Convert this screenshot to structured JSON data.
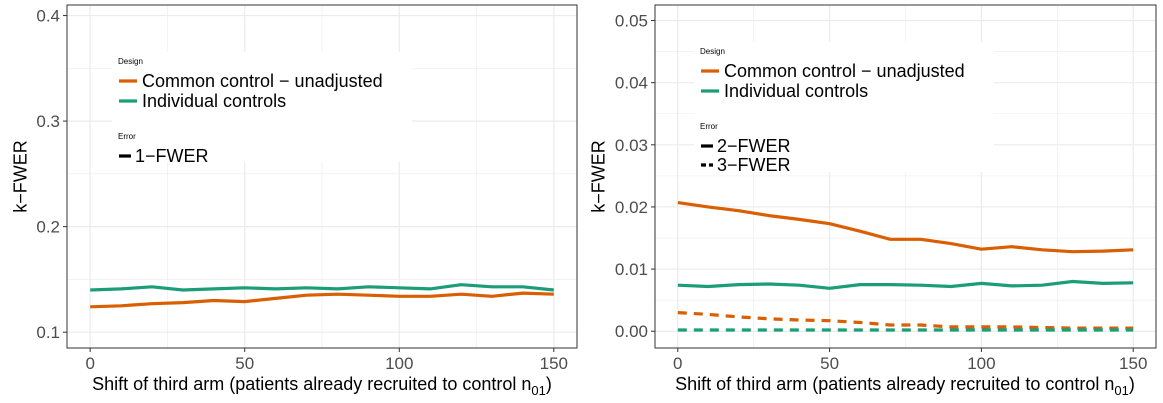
{
  "colors": {
    "common_control": "#D95F02",
    "individual_controls": "#1B9E77",
    "grid": "#EBEBEB",
    "axis_text": "#4D4D4D",
    "panel_border": "#333333"
  },
  "chart_data": [
    {
      "type": "line",
      "xlabel": "Shift of third arm (patients already recruited to control n",
      "xlabel_sub": "01",
      "xlabel_close": ")",
      "ylabel": "k−FWER",
      "xlim": [
        -7.5,
        157.5
      ],
      "ylim": [
        0.085,
        0.41
      ],
      "x_ticks": [
        0,
        50,
        100,
        150
      ],
      "x_tick_labels": [
        "0",
        "50",
        "100",
        "150"
      ],
      "y_ticks": [
        0.1,
        0.2,
        0.3,
        0.4
      ],
      "y_tick_labels": [
        "0.1",
        "0.2",
        "0.3",
        "0.4"
      ],
      "grid": true,
      "legend": {
        "design_title": "Design",
        "design_items": [
          "Common control − unadjusted",
          "Individual controls"
        ],
        "error_title": "Error",
        "error_items": [
          "1−FWER"
        ]
      },
      "x": [
        0,
        10,
        20,
        30,
        40,
        50,
        60,
        70,
        80,
        90,
        100,
        110,
        120,
        130,
        140,
        150
      ],
      "series": [
        {
          "name": "Common control − unadjusted",
          "error": "1−FWER",
          "color": "#D95F02",
          "dash": "solid",
          "values": [
            0.124,
            0.125,
            0.127,
            0.128,
            0.13,
            0.129,
            0.132,
            0.135,
            0.136,
            0.135,
            0.134,
            0.134,
            0.136,
            0.134,
            0.137,
            0.136
          ]
        },
        {
          "name": "Individual controls",
          "error": "1−FWER",
          "color": "#1B9E77",
          "dash": "solid",
          "values": [
            0.14,
            0.141,
            0.143,
            0.14,
            0.141,
            0.142,
            0.141,
            0.142,
            0.141,
            0.143,
            0.142,
            0.141,
            0.145,
            0.143,
            0.143,
            0.14
          ]
        }
      ]
    },
    {
      "type": "line",
      "xlabel": "Shift of third arm (patients already recruited to control n",
      "xlabel_sub": "01",
      "xlabel_close": ")",
      "ylabel": "k−FWER",
      "xlim": [
        -7.5,
        157.5
      ],
      "ylim": [
        -0.0027,
        0.0525
      ],
      "x_ticks": [
        0,
        50,
        100,
        150
      ],
      "x_tick_labels": [
        "0",
        "50",
        "100",
        "150"
      ],
      "y_ticks": [
        0.0,
        0.01,
        0.02,
        0.03,
        0.04,
        0.05
      ],
      "y_tick_labels": [
        "0.00",
        "0.01",
        "0.02",
        "0.03",
        "0.04",
        "0.05"
      ],
      "grid": true,
      "legend": {
        "design_title": "Design",
        "design_items": [
          "Common control − unadjusted",
          "Individual controls"
        ],
        "error_title": "Error",
        "error_items": [
          "2−FWER",
          "3−FWER"
        ]
      },
      "x": [
        0,
        10,
        20,
        30,
        40,
        50,
        60,
        70,
        80,
        90,
        100,
        110,
        120,
        130,
        140,
        150
      ],
      "series": [
        {
          "name": "Common control − unadjusted",
          "error": "2−FWER",
          "color": "#D95F02",
          "dash": "solid",
          "values": [
            0.0207,
            0.02,
            0.0194,
            0.0186,
            0.018,
            0.0173,
            0.0161,
            0.0148,
            0.0148,
            0.0141,
            0.0132,
            0.0136,
            0.0131,
            0.0128,
            0.0129,
            0.0131
          ]
        },
        {
          "name": "Individual controls",
          "error": "2−FWER",
          "color": "#1B9E77",
          "dash": "solid",
          "values": [
            0.0074,
            0.0072,
            0.0075,
            0.0076,
            0.0074,
            0.0069,
            0.0075,
            0.0075,
            0.0074,
            0.0072,
            0.0077,
            0.0073,
            0.0074,
            0.008,
            0.0077,
            0.0078
          ]
        },
        {
          "name": "Common control − unadjusted",
          "error": "3−FWER",
          "color": "#D95F02",
          "dash": "dashed",
          "values": [
            0.003,
            0.0027,
            0.0023,
            0.002,
            0.0018,
            0.0017,
            0.0014,
            0.001,
            0.001,
            0.0007,
            0.0007,
            0.0007,
            0.0006,
            0.0005,
            0.0005,
            0.0005
          ]
        },
        {
          "name": "Individual controls",
          "error": "3−FWER",
          "color": "#1B9E77",
          "dash": "dashed",
          "values": [
            0.0002,
            0.0002,
            0.0002,
            0.0002,
            0.0002,
            0.0002,
            0.0002,
            0.0002,
            0.0002,
            0.0002,
            0.0002,
            0.0002,
            0.0002,
            0.0002,
            0.0002,
            0.0002
          ]
        }
      ]
    }
  ]
}
